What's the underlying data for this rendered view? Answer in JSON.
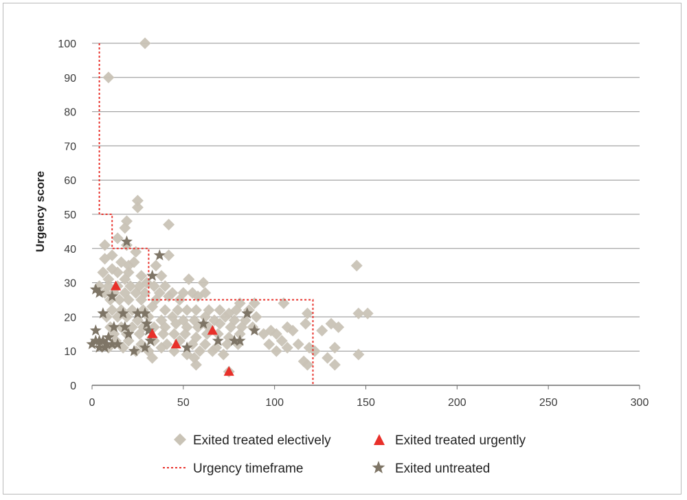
{
  "chart_data": {
    "type": "scatter",
    "title": "",
    "xlabel": "",
    "ylabel": "Urgency score",
    "xlim": [
      0,
      300
    ],
    "ylim": [
      0,
      100
    ],
    "x_ticks": [
      "0",
      "50",
      "100",
      "150",
      "200",
      "250",
      "300"
    ],
    "y_ticks": [
      "0",
      "10",
      "20",
      "30",
      "40",
      "50",
      "60",
      "70",
      "80",
      "90",
      "100"
    ],
    "grid": "horizontal",
    "legend_position": "bottom",
    "colors": {
      "elective": "#c9c3b6",
      "urgent": "#e8302a",
      "untreated": "#7e7566",
      "timeframe": "#e8302a",
      "grid": "#8f8f8f",
      "axis": "#6d6d6d"
    },
    "series": [
      {
        "name": "Exited treated electively",
        "marker": "diamond",
        "points": [
          [
            29,
            100
          ],
          [
            9,
            90
          ],
          [
            25,
            54
          ],
          [
            25,
            52
          ],
          [
            19,
            48
          ],
          [
            18,
            46
          ],
          [
            42,
            47
          ],
          [
            14,
            43
          ],
          [
            7,
            41
          ],
          [
            19,
            41
          ],
          [
            24,
            39
          ],
          [
            42,
            38
          ],
          [
            11,
            38
          ],
          [
            7,
            37
          ],
          [
            16,
            36
          ],
          [
            20,
            35
          ],
          [
            23,
            36
          ],
          [
            35,
            35
          ],
          [
            11,
            34
          ],
          [
            145,
            35
          ],
          [
            6,
            33
          ],
          [
            14,
            33
          ],
          [
            20,
            33
          ],
          [
            27,
            32
          ],
          [
            38,
            32
          ],
          [
            9,
            31
          ],
          [
            18,
            31
          ],
          [
            30,
            30
          ],
          [
            53,
            31
          ],
          [
            61,
            30
          ],
          [
            4,
            29
          ],
          [
            9,
            29
          ],
          [
            14,
            29
          ],
          [
            21,
            29
          ],
          [
            26,
            29
          ],
          [
            34,
            29
          ],
          [
            40,
            29
          ],
          [
            7,
            27
          ],
          [
            12,
            27
          ],
          [
            18,
            27
          ],
          [
            24,
            27
          ],
          [
            29,
            27
          ],
          [
            37,
            27
          ],
          [
            44,
            27
          ],
          [
            50,
            27
          ],
          [
            55,
            27
          ],
          [
            62,
            27
          ],
          [
            10,
            25
          ],
          [
            15,
            25
          ],
          [
            20,
            25
          ],
          [
            27,
            25
          ],
          [
            35,
            25
          ],
          [
            42,
            26
          ],
          [
            48,
            25
          ],
          [
            58,
            26
          ],
          [
            105,
            24
          ],
          [
            81,
            24
          ],
          [
            89,
            24
          ],
          [
            11,
            22
          ],
          [
            16,
            22
          ],
          [
            22,
            22
          ],
          [
            28,
            22
          ],
          [
            33,
            23
          ],
          [
            40,
            22
          ],
          [
            47,
            22
          ],
          [
            52,
            22
          ],
          [
            57,
            22
          ],
          [
            64,
            22
          ],
          [
            70,
            22
          ],
          [
            75,
            21
          ],
          [
            79,
            22
          ],
          [
            86,
            22
          ],
          [
            118,
            21
          ],
          [
            146,
            21
          ],
          [
            151,
            21
          ],
          [
            8,
            20
          ],
          [
            14,
            20
          ],
          [
            19,
            20
          ],
          [
            25,
            19
          ],
          [
            31,
            20
          ],
          [
            38,
            19
          ],
          [
            44,
            20
          ],
          [
            50,
            19
          ],
          [
            56,
            19
          ],
          [
            62,
            20
          ],
          [
            67,
            19
          ],
          [
            73,
            20
          ],
          [
            78,
            19
          ],
          [
            84,
            19
          ],
          [
            90,
            20
          ],
          [
            10,
            17
          ],
          [
            16,
            17
          ],
          [
            22,
            17
          ],
          [
            28,
            17
          ],
          [
            34,
            17
          ],
          [
            40,
            17
          ],
          [
            46,
            18
          ],
          [
            52,
            17
          ],
          [
            58,
            17
          ],
          [
            64,
            17
          ],
          [
            70,
            18
          ],
          [
            76,
            17
          ],
          [
            82,
            17
          ],
          [
            88,
            17
          ],
          [
            98,
            16
          ],
          [
            107,
            17
          ],
          [
            117,
            18
          ],
          [
            126,
            16
          ],
          [
            131,
            18
          ],
          [
            135,
            17
          ],
          [
            12,
            15
          ],
          [
            19,
            15
          ],
          [
            26,
            15
          ],
          [
            33,
            14
          ],
          [
            39,
            15
          ],
          [
            45,
            15
          ],
          [
            51,
            15
          ],
          [
            57,
            14
          ],
          [
            63,
            15
          ],
          [
            69,
            15
          ],
          [
            75,
            14
          ],
          [
            81,
            15
          ],
          [
            94,
            15
          ],
          [
            101,
            15
          ],
          [
            110,
            16
          ],
          [
            6,
            12
          ],
          [
            13,
            13
          ],
          [
            20,
            13
          ],
          [
            27,
            12
          ],
          [
            34,
            13
          ],
          [
            41,
            12
          ],
          [
            48,
            13
          ],
          [
            55,
            12
          ],
          [
            62,
            12
          ],
          [
            68,
            11
          ],
          [
            74,
            12
          ],
          [
            80,
            12
          ],
          [
            97,
            12
          ],
          [
            104,
            13
          ],
          [
            113,
            12
          ],
          [
            119,
            11
          ],
          [
            9,
            11
          ],
          [
            17,
            11
          ],
          [
            24,
            10
          ],
          [
            31,
            10
          ],
          [
            38,
            11
          ],
          [
            45,
            10
          ],
          [
            52,
            9
          ],
          [
            59,
            10
          ],
          [
            66,
            10
          ],
          [
            72,
            9
          ],
          [
            101,
            10
          ],
          [
            107,
            11
          ],
          [
            122,
            10
          ],
          [
            133,
            11
          ],
          [
            56,
            8
          ],
          [
            116,
            7
          ],
          [
            129,
            8
          ],
          [
            146,
            9
          ],
          [
            33,
            8
          ],
          [
            57,
            6
          ],
          [
            118,
            6
          ],
          [
            133,
            6
          ],
          [
            75,
            4
          ]
        ]
      },
      {
        "name": "Exited treated urgently",
        "marker": "triangle",
        "points": [
          [
            13,
            29
          ],
          [
            33,
            15
          ],
          [
            46,
            12
          ],
          [
            66,
            16
          ],
          [
            75,
            4
          ]
        ]
      },
      {
        "name": "Exited untreated",
        "marker": "star",
        "points": [
          [
            19,
            42
          ],
          [
            37,
            38
          ],
          [
            33,
            32
          ],
          [
            2,
            28
          ],
          [
            4,
            27
          ],
          [
            11,
            26
          ],
          [
            6,
            21
          ],
          [
            17,
            21
          ],
          [
            25,
            21
          ],
          [
            29,
            21
          ],
          [
            61,
            18
          ],
          [
            30,
            18
          ],
          [
            31,
            16
          ],
          [
            18,
            17
          ],
          [
            12,
            17
          ],
          [
            2,
            16
          ],
          [
            89,
            16
          ],
          [
            85,
            21
          ],
          [
            20,
            15
          ],
          [
            32,
            13
          ],
          [
            78,
            13
          ],
          [
            9,
            14
          ],
          [
            2,
            13
          ],
          [
            4,
            13
          ],
          [
            6,
            13
          ],
          [
            8,
            12
          ],
          [
            11,
            12
          ],
          [
            14,
            12
          ],
          [
            0,
            12
          ],
          [
            69,
            13
          ],
          [
            81,
            13
          ],
          [
            52,
            11
          ],
          [
            29,
            11
          ],
          [
            23,
            10
          ],
          [
            7,
            11
          ],
          [
            4,
            11
          ]
        ]
      },
      {
        "name": "Urgency timeframe",
        "style": "dashed-step-line",
        "points": [
          [
            4,
            100
          ],
          [
            4,
            50
          ],
          [
            11,
            50
          ],
          [
            11,
            40
          ],
          [
            31,
            40
          ],
          [
            31,
            25
          ],
          [
            121,
            25
          ],
          [
            121,
            0
          ]
        ]
      }
    ],
    "legend": [
      {
        "label": "Exited treated electively",
        "marker": "diamond"
      },
      {
        "label": "Exited treated urgently",
        "marker": "triangle"
      },
      {
        "label": "Urgency timeframe",
        "marker": "dashed-line"
      },
      {
        "label": "Exited untreated",
        "marker": "star"
      }
    ]
  }
}
